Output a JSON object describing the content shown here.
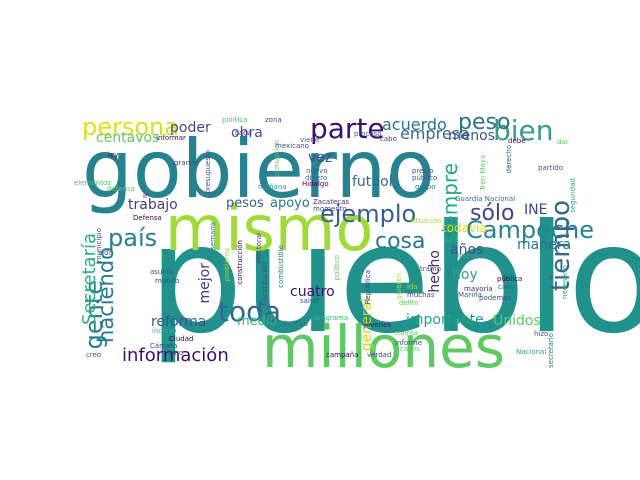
{
  "colors": {
    "background": "#ffffff",
    "palette": [
      "#440154",
      "#3b528b",
      "#21918c",
      "#5ec962",
      "#fde725"
    ]
  },
  "words": [
    {
      "text": "pueblo",
      "color": "#21918c"
    },
    {
      "text": "gobierno",
      "color": "#26828e"
    },
    {
      "text": "mismo",
      "color": "#a0da39"
    },
    {
      "text": "millones",
      "color": "#5ec962"
    },
    {
      "text": "Campeche",
      "color": "#26828e"
    },
    {
      "text": "parte",
      "color": "#3b0f70"
    },
    {
      "text": "bien",
      "color": "#3b9a8b"
    },
    {
      "text": "persona",
      "color": "#d8e219"
    },
    {
      "text": "peso",
      "color": "#2c728e"
    },
    {
      "text": "ejemplo",
      "color": "#35608d"
    },
    {
      "text": "tiempo",
      "color": "#31688e"
    },
    {
      "text": "toda",
      "color": "#31688e"
    },
    {
      "text": "país",
      "color": "#287c8e"
    },
    {
      "text": "gente",
      "color": "#26828e"
    },
    {
      "text": "información",
      "color": "#3b0f70"
    },
    {
      "text": "sólo",
      "color": "#414487"
    },
    {
      "text": "cosa",
      "color": "#2a788e"
    },
    {
      "text": "Secretaría",
      "color": "#29af7f"
    },
    {
      "text": "haciendo",
      "color": "#2a788e"
    },
    {
      "text": "siempre",
      "color": "#22a884"
    },
    {
      "text": "acuerdo",
      "color": "#2c728e"
    },
    {
      "text": "empresa",
      "color": "#31688e"
    },
    {
      "text": "poder",
      "color": "#3e4a89"
    },
    {
      "text": "centavos",
      "color": "#5ec962"
    },
    {
      "text": "menos",
      "color": "#3b528b"
    },
    {
      "text": "obra",
      "color": "#3b528b"
    },
    {
      "text": "vez",
      "color": "#3e4a89"
    },
    {
      "text": "futbol",
      "color": "#31688e"
    },
    {
      "text": "pesos",
      "color": "#35608d"
    },
    {
      "text": "trabajo",
      "color": "#443983"
    },
    {
      "text": "apoyo",
      "color": "#2a788e"
    },
    {
      "text": "INE",
      "color": "#3e4a89"
    },
    {
      "text": "manera",
      "color": "#2c728e"
    },
    {
      "text": "años",
      "color": "#3b528b"
    },
    {
      "text": "todavía",
      "color": "#d2e21b"
    },
    {
      "text": "hecho",
      "color": "#482878"
    },
    {
      "text": "hoy",
      "color": "#3b9a8b"
    },
    {
      "text": "mejor",
      "color": "#443983"
    },
    {
      "text": "cuatro",
      "color": "#3b0f70"
    },
    {
      "text": "reforma",
      "color": "#3b528b"
    },
    {
      "text": "medio",
      "color": "#35b779"
    },
    {
      "text": "general",
      "color": "#bddf26"
    },
    {
      "text": "importante",
      "color": "#20a386"
    },
    {
      "text": "Unidos",
      "color": "#5ec962"
    },
    {
      "text": "política",
      "color": "#4ac16d"
    },
    {
      "text": "zona",
      "color": "#3e4a89"
    },
    {
      "text": "informar",
      "color": "#440154"
    },
    {
      "text": "cada",
      "color": "#482878"
    },
    {
      "text": "proceso",
      "color": "#39568c"
    },
    {
      "text": "viene",
      "color": "#35608d"
    },
    {
      "text": "mexicano",
      "color": "#3e4a89"
    },
    {
      "text": "nuevo",
      "color": "#3b528b"
    },
    {
      "text": "dinero",
      "color": "#31688e"
    },
    {
      "text": "corrupción",
      "color": "#5ec962"
    },
    {
      "text": "debe",
      "color": "#440154"
    },
    {
      "text": "dar",
      "color": "#5ec962"
    },
    {
      "text": "derecho",
      "color": "#31688e"
    },
    {
      "text": "partido",
      "color": "#3b528b"
    },
    {
      "text": "Tren Maya",
      "color": "#5ec962"
    },
    {
      "text": "precio",
      "color": "#3b528b"
    },
    {
      "text": "público",
      "color": "#35608d"
    },
    {
      "text": "grupo",
      "color": "#2c728e"
    },
    {
      "text": "cabo",
      "color": "#443983"
    },
    {
      "text": "ley",
      "color": "#440154"
    },
    {
      "text": "grande",
      "color": "#414487"
    },
    {
      "text": "elementos",
      "color": "#4ac16d"
    },
    {
      "text": "defensa",
      "color": "#5ec962"
    },
    {
      "text": "presupuesto",
      "color": "#3b528b"
    },
    {
      "text": "mañana",
      "color": "#1fa187"
    },
    {
      "text": "Hidalgo",
      "color": "#440154"
    },
    {
      "text": "ir",
      "color": "#440154"
    },
    {
      "text": "Guardia Nacional",
      "color": "#2c728e"
    },
    {
      "text": "seguridad",
      "color": "#3b9a8b"
    },
    {
      "text": "Zacatecas",
      "color": "#482878"
    },
    {
      "text": "momento",
      "color": "#3e4a89"
    },
    {
      "text": "Defensa",
      "color": "#440154"
    },
    {
      "text": "situación",
      "color": "#a0da39"
    },
    {
      "text": "municipio",
      "color": "#3b528b"
    },
    {
      "text": "vida",
      "color": "#2c728e"
    },
    {
      "text": "semana",
      "color": "#2c728e"
    },
    {
      "text": "electoral",
      "color": "#3e4a89"
    },
    {
      "text": "construcción",
      "color": "#440154"
    },
    {
      "text": "asunto",
      "color": "#3b528b"
    },
    {
      "text": "mundo",
      "color": "#3b528b"
    },
    {
      "text": "problema",
      "color": "#a0da39"
    },
    {
      "text": "combustible",
      "color": "#2a788e"
    },
    {
      "text": "Constitución",
      "color": "#3b528b"
    },
    {
      "text": "República",
      "color": "#414487"
    },
    {
      "text": "programa",
      "color": "#35b779"
    },
    {
      "text": "libertad",
      "color": "#2c728e"
    },
    {
      "text": "salud",
      "color": "#3b528b"
    },
    {
      "text": "político",
      "color": "#5ec962"
    },
    {
      "text": "quieren",
      "color": "#a0da39"
    },
    {
      "text": "ida",
      "color": "#a0da39"
    },
    {
      "text": "muchas",
      "color": "#414487"
    },
    {
      "text": "delito",
      "color": "#5ec962"
    },
    {
      "text": "historia",
      "color": "#3b9a8b"
    },
    {
      "text": "Marina",
      "color": "#3b528b"
    },
    {
      "text": "mayoría",
      "color": "#482878"
    },
    {
      "text": "podemos",
      "color": "#3b528b"
    },
    {
      "text": "pública",
      "color": "#440154"
    },
    {
      "text": "casos",
      "color": "#31688e"
    },
    {
      "text": "incluso",
      "color": "#35b779"
    },
    {
      "text": "Ciudad",
      "color": "#440154"
    },
    {
      "text": "Cámara",
      "color": "#3e4a89"
    },
    {
      "text": "sino",
      "color": "#3e4a89"
    },
    {
      "text": "creo",
      "color": "#3b528b"
    },
    {
      "text": "campaña",
      "color": "#440154"
    },
    {
      "text": "verdad",
      "color": "#3e4a89"
    },
    {
      "text": "jóvenes",
      "color": "#3b0f70"
    },
    {
      "text": "cuenta",
      "color": "#5ec962"
    },
    {
      "text": "informe",
      "color": "#3b528b"
    },
    {
      "text": "casos",
      "color": "#5ec962"
    },
    {
      "text": "tramo",
      "color": "#3e4a89"
    },
    {
      "text": "hizo",
      "color": "#3b528b"
    },
    {
      "text": "secretario",
      "color": "#2c728e"
    },
    {
      "text": "Nacional",
      "color": "#3b9a8b"
    },
    {
      "text": "necesario",
      "color": "#3b9a8b"
    }
  ]
}
